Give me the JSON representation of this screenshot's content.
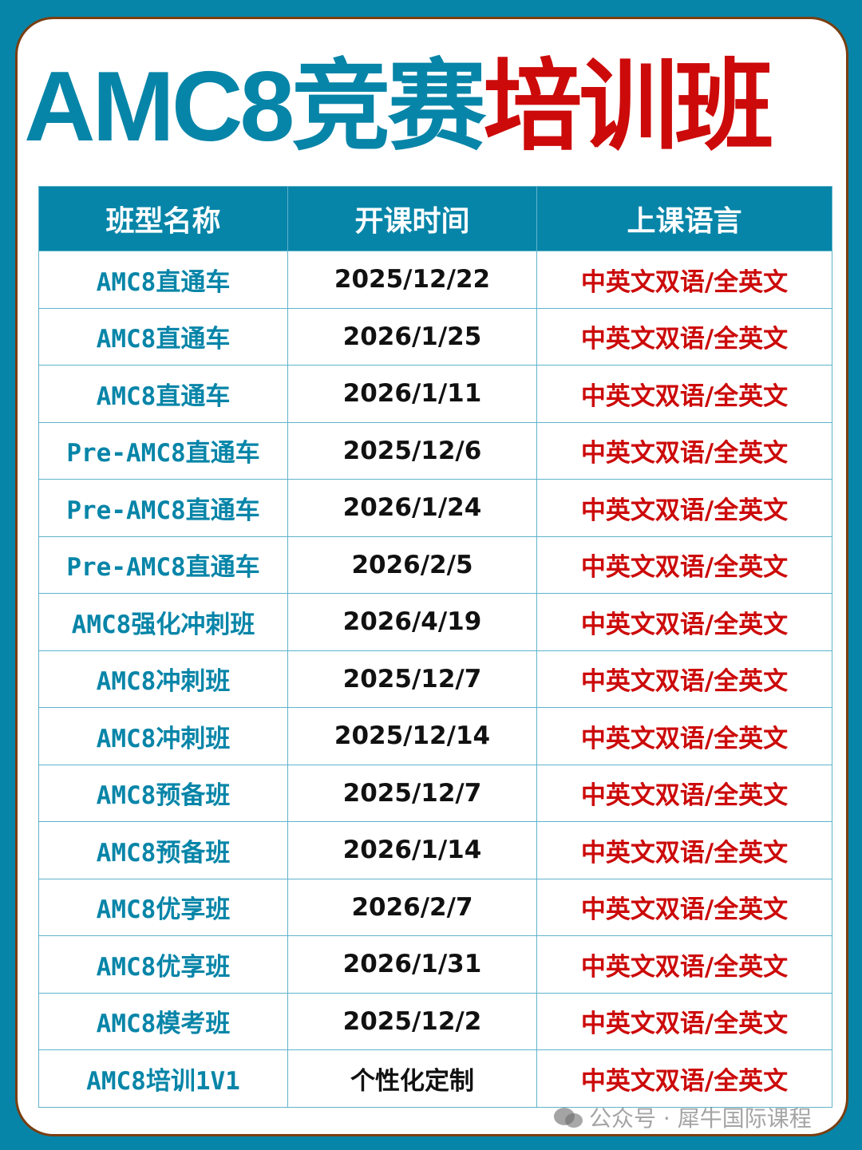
{
  "title": {
    "part1": "AMC8竞赛",
    "part2": "培训班"
  },
  "colors": {
    "accent": "#0785a8",
    "highlight": "#cc0a0a",
    "frame": "#7a3e10"
  },
  "table": {
    "headers": [
      "班型名称",
      "开课时间",
      "上课语言"
    ],
    "rows": [
      [
        "AMC8直通车",
        "2025/12/22",
        "中英文双语/全英文"
      ],
      [
        "AMC8直通车",
        "2026/1/25",
        "中英文双语/全英文"
      ],
      [
        "AMC8直通车",
        "2026/1/11",
        "中英文双语/全英文"
      ],
      [
        "Pre-AMC8直通车",
        "2025/12/6",
        "中英文双语/全英文"
      ],
      [
        "Pre-AMC8直通车",
        "2026/1/24",
        "中英文双语/全英文"
      ],
      [
        "Pre-AMC8直通车",
        "2026/2/5",
        "中英文双语/全英文"
      ],
      [
        "AMC8强化冲刺班",
        "2026/4/19",
        "中英文双语/全英文"
      ],
      [
        "AMC8冲刺班",
        "2025/12/7",
        "中英文双语/全英文"
      ],
      [
        "AMC8冲刺班",
        "2025/12/14",
        "中英文双语/全英文"
      ],
      [
        "AMC8预备班",
        "2025/12/7",
        "中英文双语/全英文"
      ],
      [
        "AMC8预备班",
        "2026/1/14",
        "中英文双语/全英文"
      ],
      [
        "AMC8优享班",
        "2026/2/7",
        "中英文双语/全英文"
      ],
      [
        "AMC8优享班",
        "2026/1/31",
        "中英文双语/全英文"
      ],
      [
        "AMC8模考班",
        "2025/12/2",
        "中英文双语/全英文"
      ],
      [
        "AMC8培训1V1",
        "个性化定制",
        "中英文双语/全英文"
      ]
    ]
  },
  "watermark": {
    "icon": "wechat-icon",
    "text": "公众号 · 犀牛国际课程"
  }
}
